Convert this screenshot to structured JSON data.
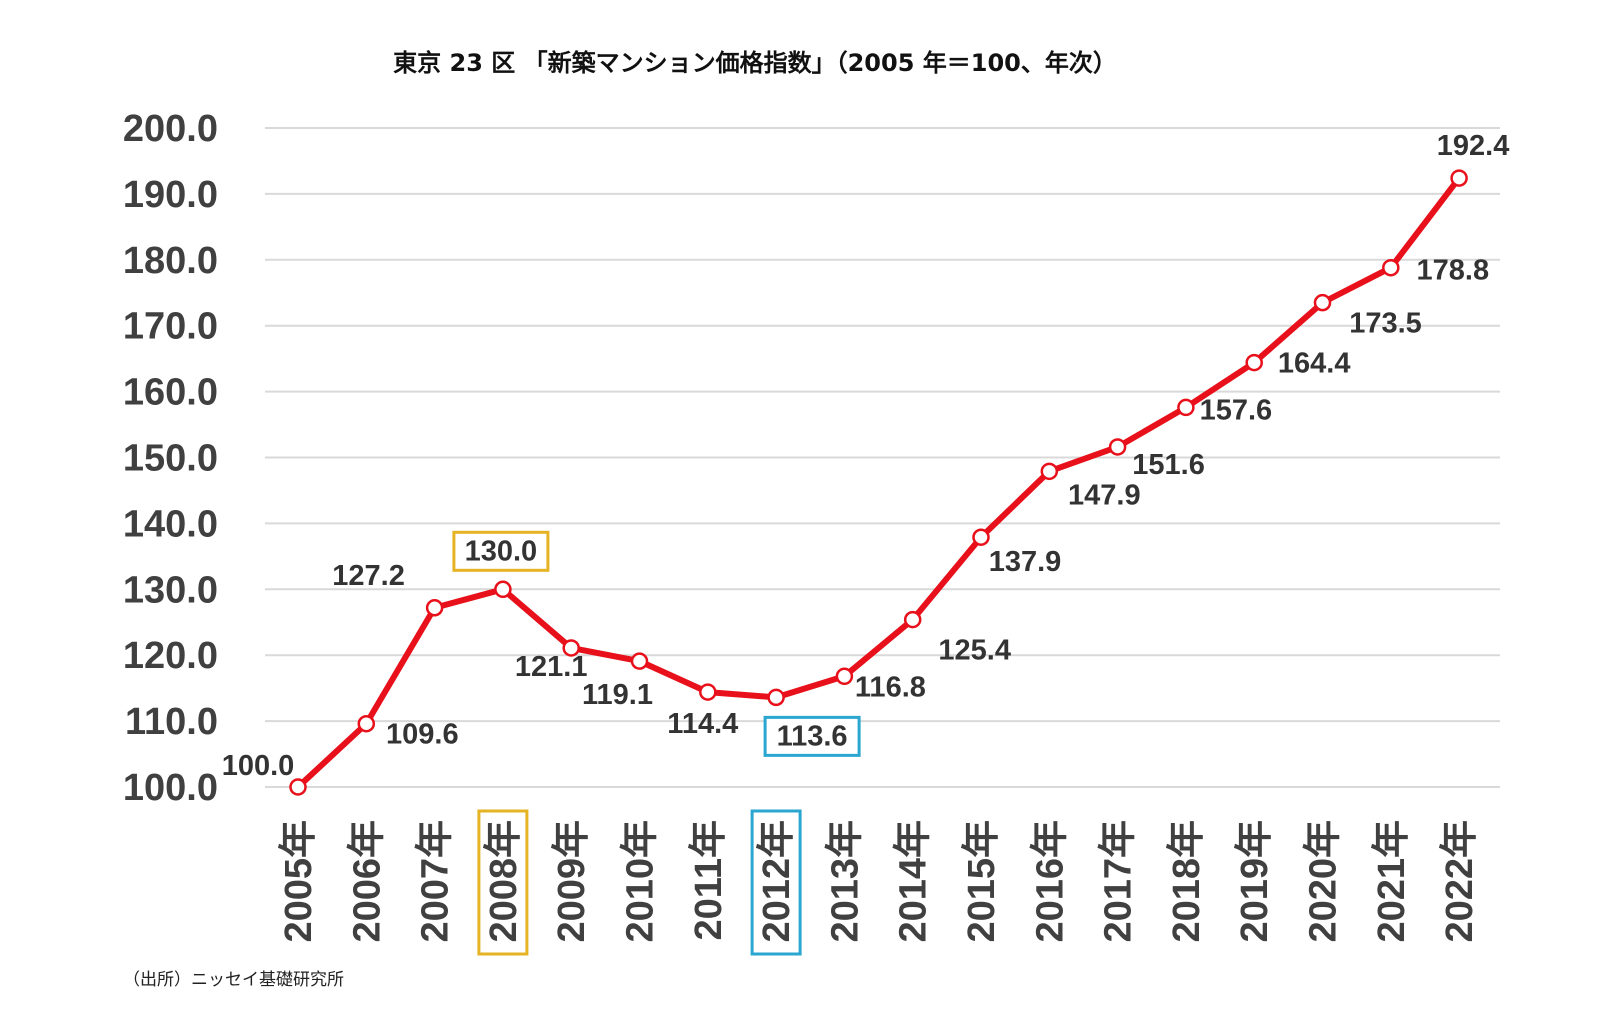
{
  "source_note": "（出所）ニッセイ基礎研究所",
  "chart_data": {
    "type": "line",
    "title": "東京 23 区 「新築マンション価格指数」（2005 年＝100、年次）",
    "xlabel": "",
    "ylabel": "",
    "ylim": [
      100,
      200
    ],
    "yticks": [
      "100.0",
      "110.0",
      "120.0",
      "130.0",
      "140.0",
      "150.0",
      "160.0",
      "170.0",
      "180.0",
      "190.0",
      "200.0"
    ],
    "grid": true,
    "categories": [
      "2005年",
      "2006年",
      "2007年",
      "2008年",
      "2009年",
      "2010年",
      "2011年",
      "2012年",
      "2013年",
      "2014年",
      "2015年",
      "2016年",
      "2017年",
      "2018年",
      "2019年",
      "2020年",
      "2021年",
      "2022年"
    ],
    "values": [
      100.0,
      109.6,
      127.2,
      130.0,
      121.1,
      119.1,
      114.4,
      113.6,
      116.8,
      125.4,
      137.9,
      147.9,
      151.6,
      157.6,
      164.4,
      173.5,
      178.8,
      192.4
    ],
    "data_labels": [
      "100.0",
      "109.6",
      "127.2",
      "130.0",
      "121.1",
      "119.1",
      "114.4",
      "113.6",
      "116.8",
      "125.4",
      "137.9",
      "147.9",
      "151.6",
      "157.6",
      "164.4",
      "173.5",
      "178.8",
      "192.4"
    ],
    "line_color": "#e8101a",
    "highlights": [
      {
        "category": "2008年",
        "color": "#e6b325"
      },
      {
        "category": "2012年",
        "color": "#2aa6d0"
      }
    ]
  }
}
